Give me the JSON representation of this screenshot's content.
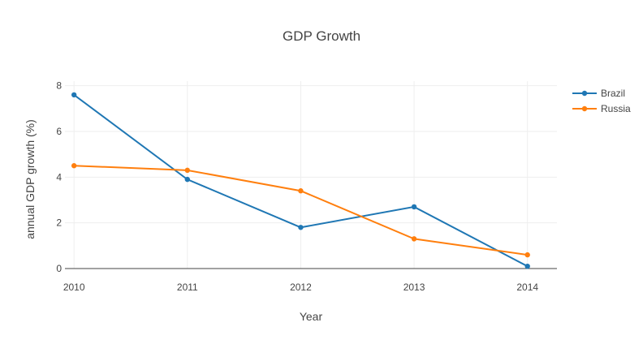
{
  "chart_data": {
    "type": "line",
    "title": "GDP Growth",
    "xlabel": "Year",
    "ylabel": "annual GDP growth (%)",
    "x": [
      2010,
      2011,
      2012,
      2013,
      2014
    ],
    "xticks": [
      "2010",
      "2011",
      "2012",
      "2013",
      "2014"
    ],
    "yticks": [
      "0",
      "2",
      "4",
      "6",
      "8"
    ],
    "xlim": [
      2009.92,
      2014.26
    ],
    "ylim": [
      0,
      8.2
    ],
    "grid": true,
    "legend_position": "top-right",
    "series": [
      {
        "name": "Brazil",
        "color": "#1f77b4",
        "values": [
          7.6,
          3.9,
          1.8,
          2.7,
          0.1
        ]
      },
      {
        "name": "Russia",
        "color": "#ff7f0e",
        "values": [
          4.5,
          4.3,
          3.4,
          1.3,
          0.6
        ]
      }
    ]
  }
}
